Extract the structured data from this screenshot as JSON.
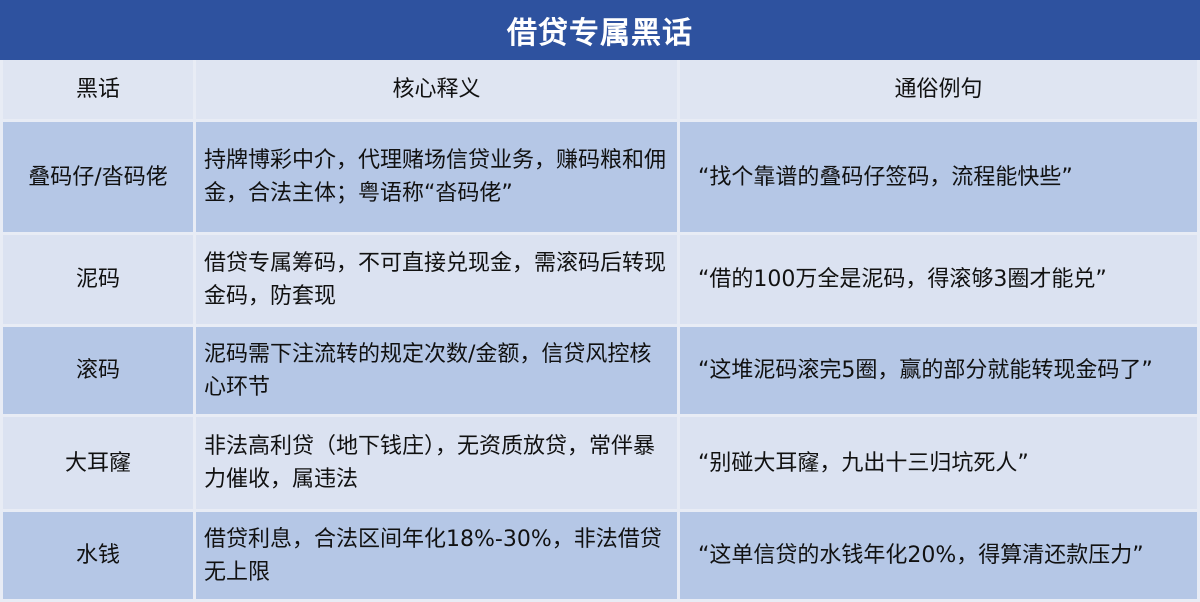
{
  "title": "借贷专属黑话",
  "columns": [
    "黑话",
    "核心释义",
    "通俗例句"
  ],
  "rows": [
    {
      "term": "叠码仔/沓码佬",
      "definition": "持牌博彩中介，代理赌场信贷业务，赚码粮和佣金，合法主体；粤语称“沓码佬”",
      "example": "“找个靠谱的叠码仔签码，流程能快些”"
    },
    {
      "term": "泥码",
      "definition": "借贷专属筹码，不可直接兑现金，需滚码后转现金码，防套现",
      "example": "“借的100万全是泥码，得滚够3圈才能兑”"
    },
    {
      "term": "滚码",
      "definition": "泥码需下注流转的规定次数/金额，信贷风控核心环节",
      "example": "“这堆泥码滚完5圈，赢的部分就能转现金码了”"
    },
    {
      "term": "大耳窿",
      "definition": "非法高利贷（地下钱庄），无资质放贷，常伴暴力催收，属违法",
      "example": "“别碰大耳窿，九出十三归坑死人”"
    },
    {
      "term": "水钱",
      "definition": "借贷利息，合法区间年化18%-30%，非法借贷无上限",
      "example": "“这单信贷的水钱年化20%，得算清还款压力”"
    }
  ]
}
